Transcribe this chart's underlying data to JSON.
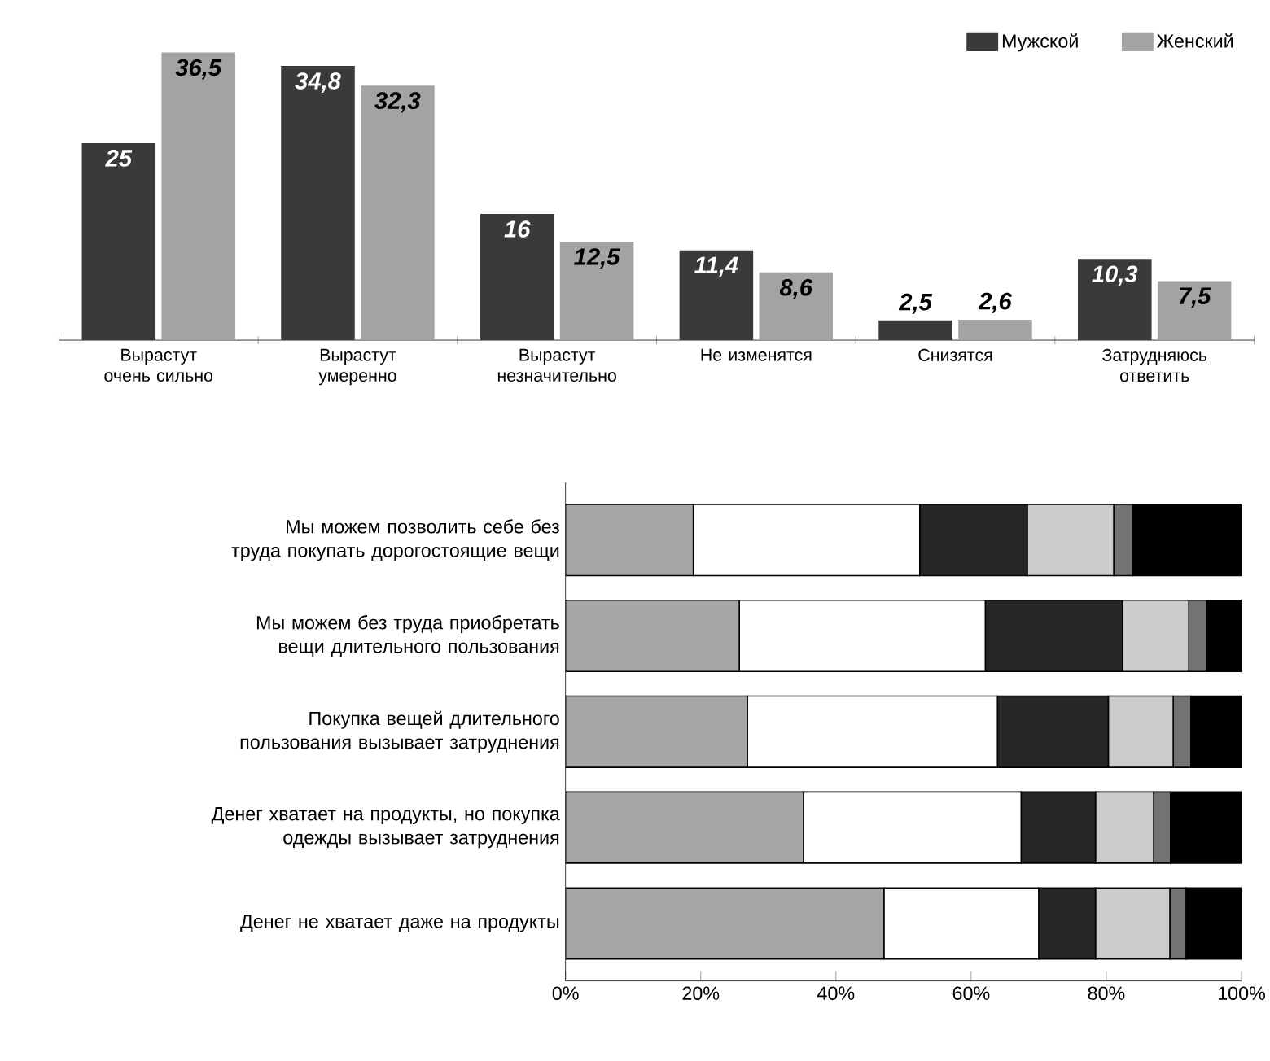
{
  "chart_data": [
    {
      "type": "bar",
      "categories": [
        "Вырастут очень сильно",
        "Вырастут умеренно",
        "Вырастут незначительно",
        "Не изменятся",
        "Снизятся",
        "Затрудняюсь ответить"
      ],
      "series": [
        {
          "name": "Мужской",
          "color": "#3a3a3a",
          "values": [
            25,
            34.8,
            16,
            11.4,
            2.5,
            10.3
          ],
          "value_labels": [
            "25",
            "34,8",
            "16",
            "11,4",
            "2,5",
            "10,3"
          ]
        },
        {
          "name": "Женский",
          "color": "#a3a3a3",
          "values": [
            36.5,
            32.3,
            12.5,
            8.6,
            2.6,
            7.5
          ],
          "value_labels": [
            "36,5",
            "32,3",
            "12,5",
            "8,6",
            "2,6",
            "7,5"
          ]
        }
      ],
      "legend": "top right"
    },
    {
      "type": "bar",
      "orientation": "horizontal",
      "stacked": true,
      "categories": [
        "Мы можем позволить себе без труда покупать дорогостоящие вещи",
        "Мы можем без труда приобретать вещи длительного пользования",
        "Покупка вещей длительного пользования вызывает затруднения",
        "Денег хватает на продукты, но покупка одежды вызывает затруднения",
        "Денег не хватает даже на продукты"
      ],
      "series": [
        {
          "color": "#a6a6a6",
          "values": [
            18.9,
            25.7,
            26.9,
            35.2,
            47.1
          ]
        },
        {
          "color": "#ffffff",
          "values": [
            33.5,
            36.4,
            37.0,
            32.2,
            22.9
          ]
        },
        {
          "color": "#262626",
          "values": [
            15.9,
            20.3,
            16.4,
            11.0,
            8.4
          ]
        },
        {
          "color": "#cccccc",
          "values": [
            12.8,
            9.8,
            9.6,
            8.6,
            11.0
          ]
        },
        {
          "color": "#737373",
          "values": [
            2.8,
            2.6,
            2.6,
            2.5,
            2.4
          ]
        },
        {
          "color": "#000000",
          "values": [
            16.1,
            5.2,
            7.5,
            10.5,
            8.2
          ]
        }
      ],
      "xlim": [
        0,
        100
      ],
      "xticks": [
        {
          "value": 0,
          "label": "0%"
        },
        {
          "value": 20,
          "label": "20%"
        },
        {
          "value": 40,
          "label": "40%"
        },
        {
          "value": 60,
          "label": "60%"
        },
        {
          "value": 80,
          "label": "80%"
        },
        {
          "value": 100,
          "label": "100%"
        }
      ]
    }
  ]
}
